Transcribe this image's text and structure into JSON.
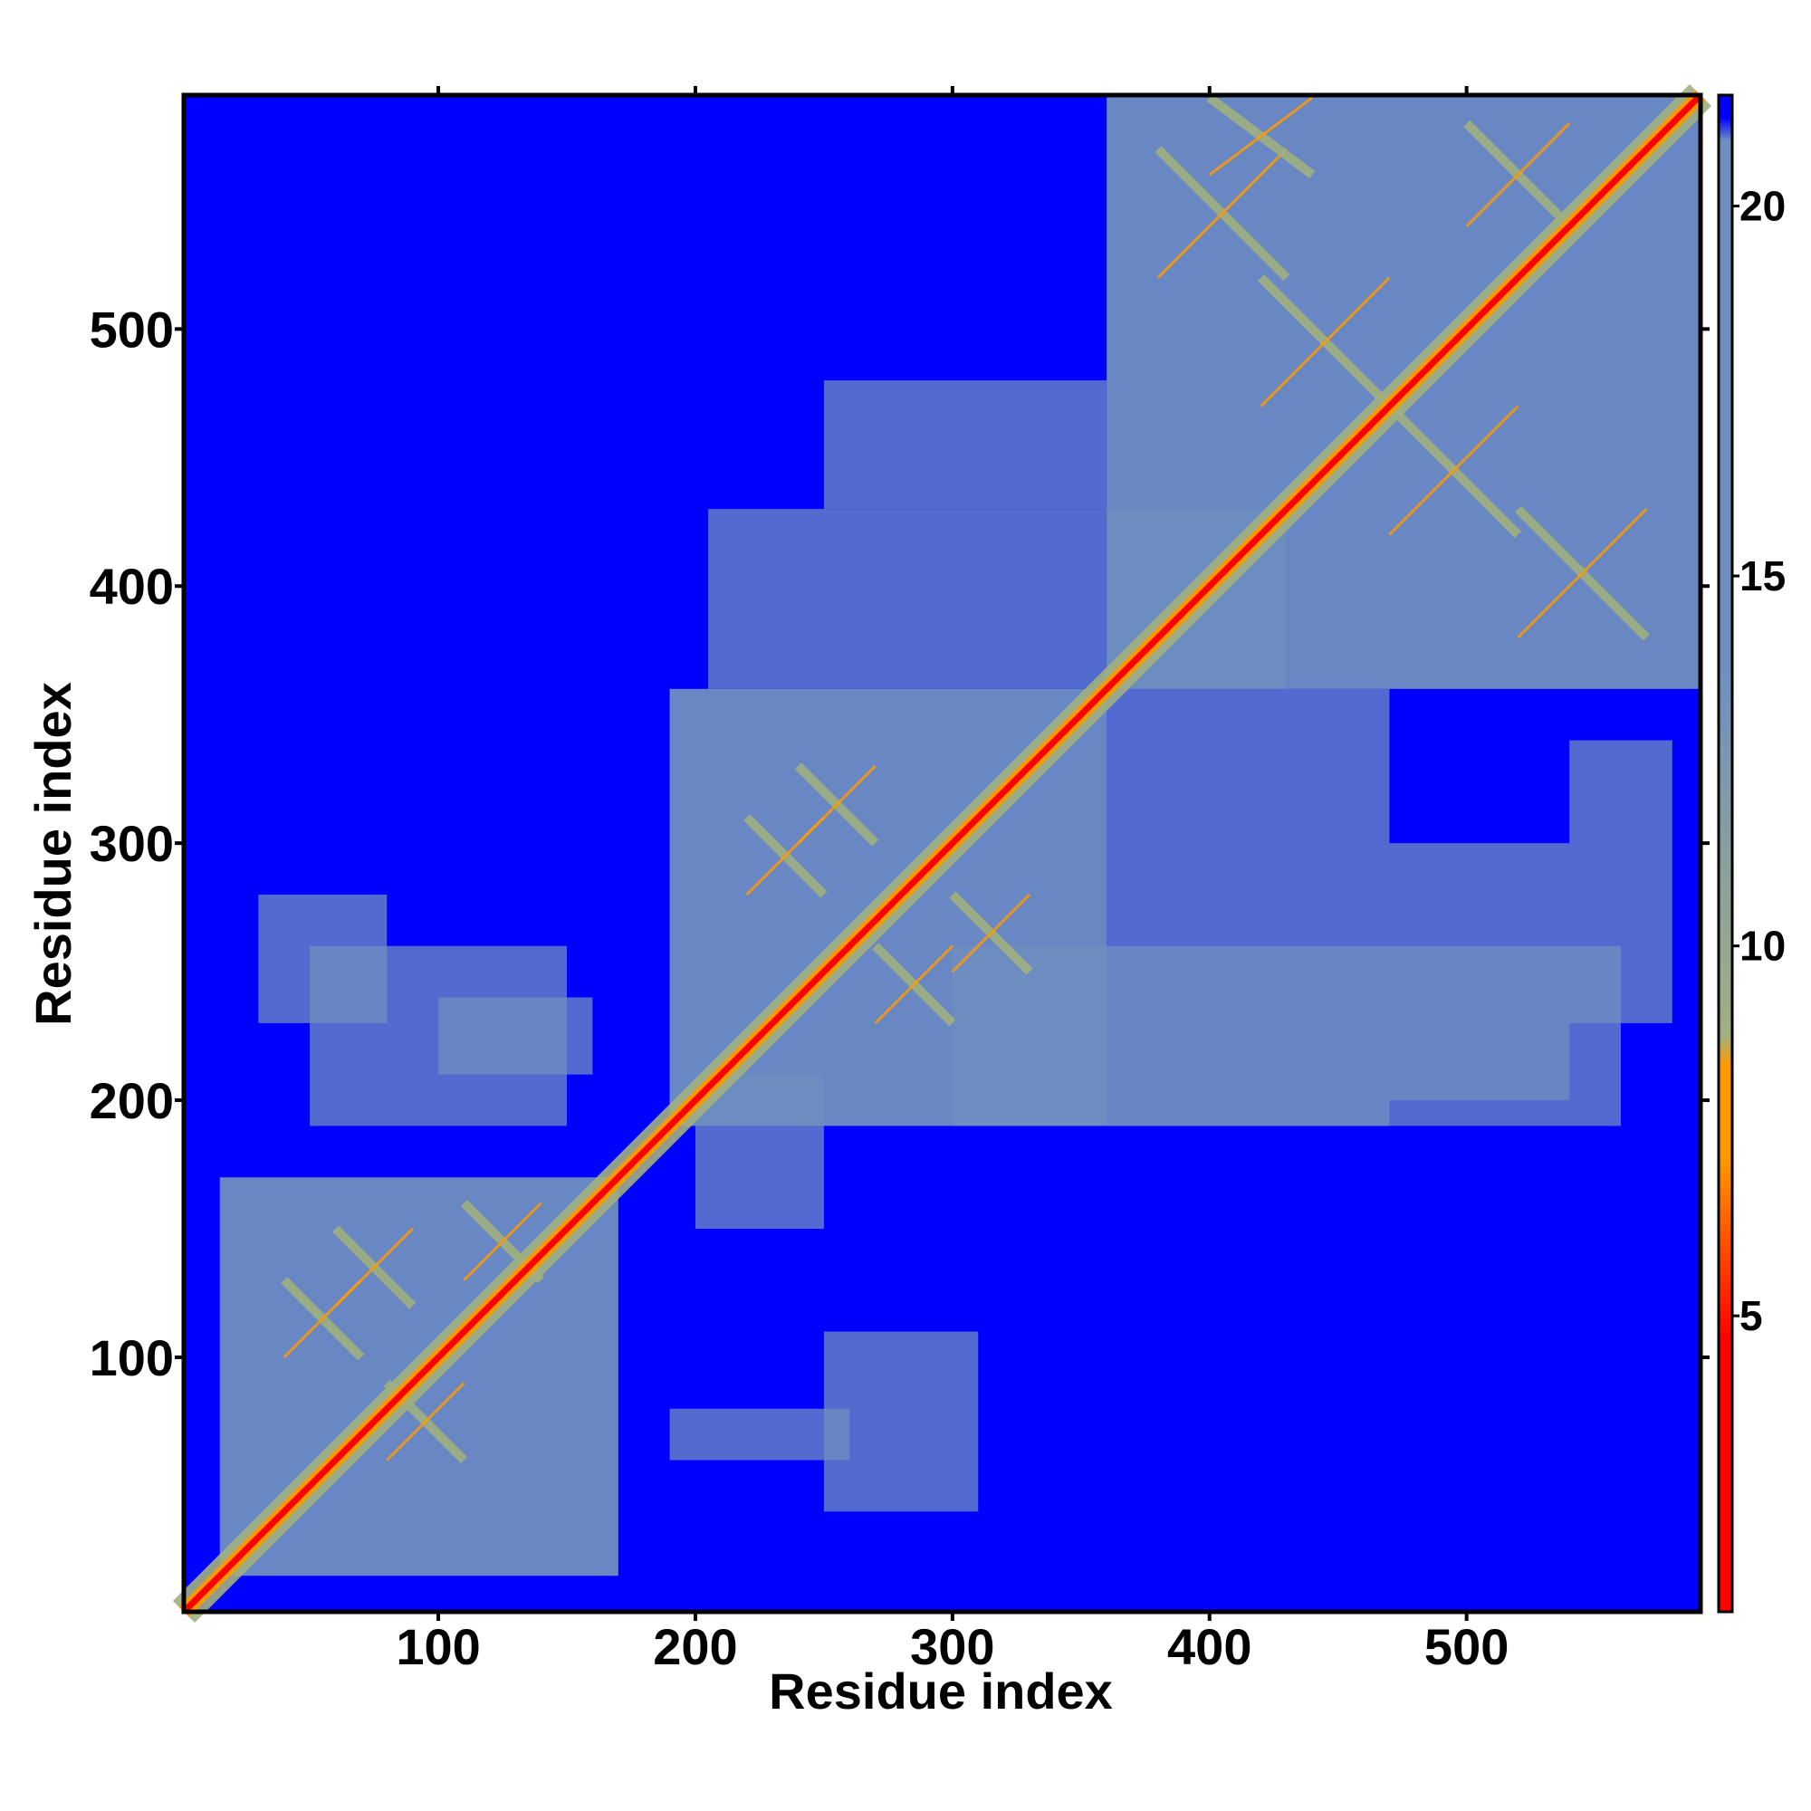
{
  "chart_data": {
    "type": "heatmap",
    "title": "",
    "xlabel": "Residue index",
    "ylabel": "Residue index",
    "xlim": [
      1,
      591
    ],
    "ylim": [
      1,
      591
    ],
    "xticks": [
      100,
      200,
      300,
      400,
      500
    ],
    "yticks": [
      100,
      200,
      300,
      400,
      500
    ],
    "grid": false,
    "colorbar": {
      "ticks": [
        5,
        10,
        15,
        20
      ],
      "range": [
        1,
        21.5
      ],
      "colors": {
        "low": "#ff0000",
        "mid_low": "#ff9900",
        "mid": "#a0b080",
        "mid_high": "#6f8fc0",
        "high": "#0000ff"
      }
    },
    "domains": [
      {
        "name": "",
        "start": 1,
        "end": 170
      },
      {
        "name": "",
        "start": 190,
        "end": 360
      },
      {
        "name": "",
        "start": 360,
        "end": 591
      }
    ],
    "background_value": 21.5,
    "contact_value": 15,
    "diagonal_value": 1
  }
}
